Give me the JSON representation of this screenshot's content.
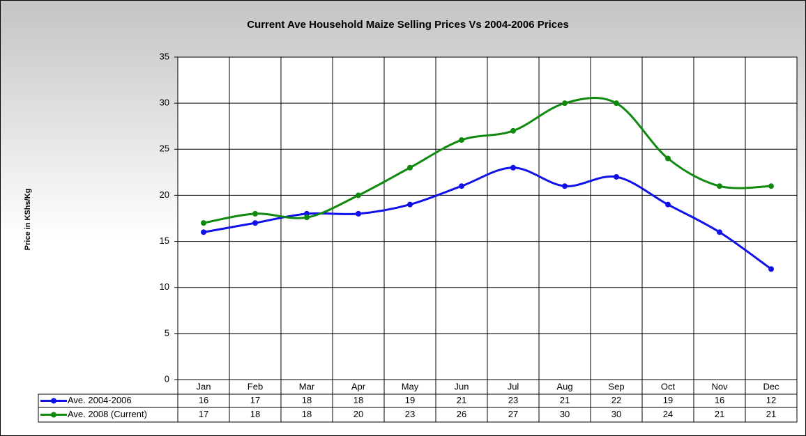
{
  "chart_data": {
    "type": "line",
    "title": "Current Ave Household Maize Selling Prices Vs 2004-2006 Prices",
    "y_label": "Price in KShs/Kg",
    "categories": [
      "Jan",
      "Feb",
      "Mar",
      "Apr",
      "May",
      "Jun",
      "Jul",
      "Aug",
      "Sep",
      "Oct",
      "Nov",
      "Dec"
    ],
    "series": [
      {
        "name": "Ave. 2004-2006",
        "color": "#1010e8",
        "values": [
          16,
          17,
          18,
          18,
          19,
          21,
          23,
          21,
          22,
          19,
          16,
          12
        ]
      },
      {
        "name": "Ave. 2008 (Current)",
        "color": "#0f8a0f",
        "values": [
          17,
          18,
          17.6,
          20,
          23,
          26,
          27,
          30,
          30,
          24,
          21,
          21
        ],
        "value_labels": [
          "17",
          "18",
          "18",
          "20",
          "23",
          "26",
          "27",
          "30",
          "30",
          "24",
          "21",
          "21"
        ]
      }
    ],
    "ylim": [
      0,
      35
    ],
    "yticks": [
      0,
      5,
      10,
      15,
      20,
      25,
      30,
      35
    ],
    "grid": true,
    "smooth": true,
    "data_table": true
  }
}
